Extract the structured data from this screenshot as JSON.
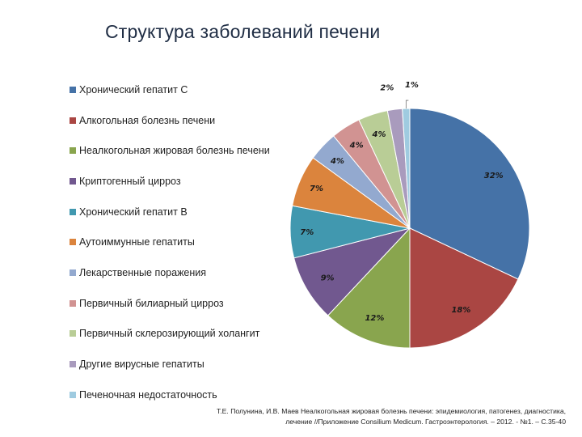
{
  "chart_data": {
    "type": "pie",
    "title": "Структура заболеваний печени",
    "legend_position": "left",
    "categories": [
      "Хронический гепатит С",
      "Алкогольная болезнь печени",
      "Неалкогольная жировая болезнь печени",
      "Криптогенный цирроз",
      "Хронический гепатит В",
      "Аутоиммунные гепатиты",
      "Лекарственные поражения",
      "Первичный билиарный цирроз",
      "Первичный склерозирующий холангит",
      "Другие вирусные гепатиты",
      "Печеночная недостаточность"
    ],
    "values": [
      32,
      18,
      12,
      9,
      7,
      7,
      4,
      4,
      4,
      2,
      1
    ],
    "labels": [
      "32%",
      "18%",
      "12%",
      "9%",
      "7%",
      "7%",
      "4%",
      "4%",
      "4%",
      "2%",
      "1%"
    ],
    "colors": [
      "#4572a7",
      "#aa4643",
      "#89a54e",
      "#71588f",
      "#4198af",
      "#db843d",
      "#93a9cf",
      "#d19392",
      "#b9cd96",
      "#a99bbd",
      "#9fcbe0"
    ]
  },
  "citation": {
    "line1": "Т.Е. Полунина, И.В. Маев Неалкогольная жировая болезнь печени: эпидемиология, патогенез, диагностика,",
    "line2": "лечение //Приложение Consilium Medicum. Гастроэнтерология. – 2012. - №1. – С.35-40"
  }
}
